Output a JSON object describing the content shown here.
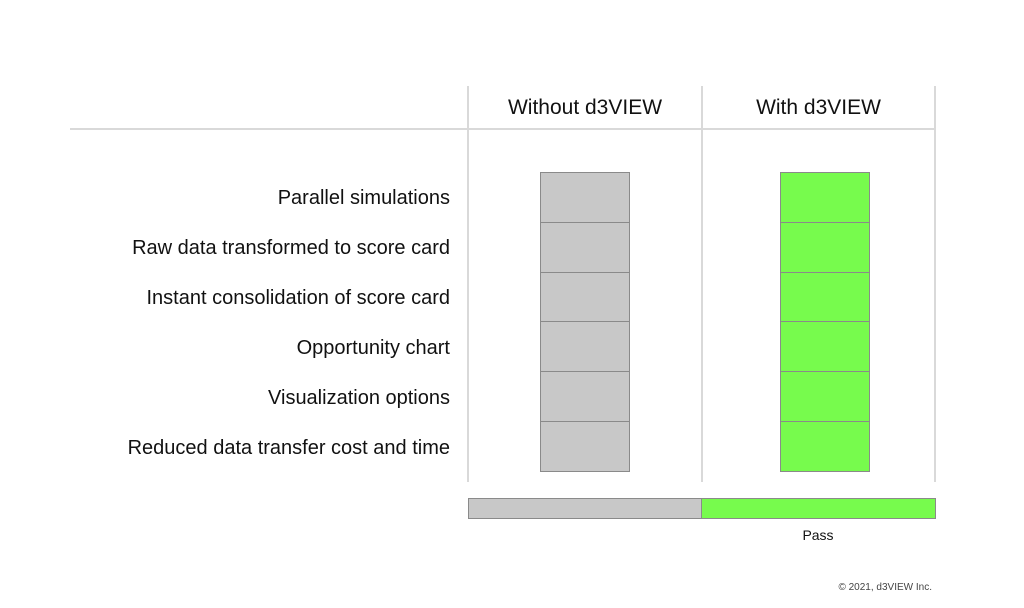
{
  "columns": [
    {
      "label": "Without d3VIEW",
      "fill": "#c8c8c8"
    },
    {
      "label": "With d3VIEW",
      "fill": "#77fb4d"
    }
  ],
  "rows": [
    "Parallel simulations",
    "Raw data transformed to score card",
    "Instant consolidation of score card",
    "Opportunity chart",
    "Visualization options",
    "Reduced data transfer cost and time"
  ],
  "legend": {
    "segments": [
      {
        "label": "",
        "color": "#c8c8c8"
      },
      {
        "label": "Pass",
        "color": "#77fb4d"
      }
    ]
  },
  "footer": {
    "copyright": "© 2021, d3VIEW Inc."
  }
}
